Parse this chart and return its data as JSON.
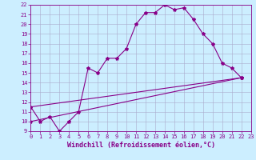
{
  "xlabel": "Windchill (Refroidissement éolien,°C)",
  "xlim": [
    0,
    23
  ],
  "ylim": [
    9,
    22
  ],
  "xticks": [
    0,
    1,
    2,
    3,
    4,
    5,
    6,
    7,
    8,
    9,
    10,
    11,
    12,
    13,
    14,
    15,
    16,
    17,
    18,
    19,
    20,
    21,
    22,
    23
  ],
  "yticks": [
    9,
    10,
    11,
    12,
    13,
    14,
    15,
    16,
    17,
    18,
    19,
    20,
    21,
    22
  ],
  "background_color": "#cceeff",
  "grid_color": "#aaaacc",
  "line_color": "#880088",
  "line1_x": [
    0,
    1,
    2,
    3,
    4,
    5,
    6,
    7,
    8,
    9,
    10,
    11,
    12,
    13,
    14,
    15,
    16,
    17,
    18,
    19,
    20,
    21,
    22
  ],
  "line1_y": [
    11.5,
    10.0,
    10.5,
    9.0,
    10.0,
    11.0,
    15.5,
    15.0,
    16.5,
    16.5,
    17.5,
    20.0,
    21.2,
    21.2,
    22.0,
    21.5,
    21.7,
    20.5,
    19.0,
    18.0,
    16.0,
    15.5,
    14.5
  ],
  "line2_x": [
    0,
    22
  ],
  "line2_y": [
    10.0,
    14.5
  ],
  "line3_x": [
    0,
    22
  ],
  "line3_y": [
    11.5,
    14.5
  ],
  "marker": "*",
  "markersize": 3,
  "linewidth": 0.8,
  "tick_fontsize": 5,
  "xlabel_fontsize": 6
}
